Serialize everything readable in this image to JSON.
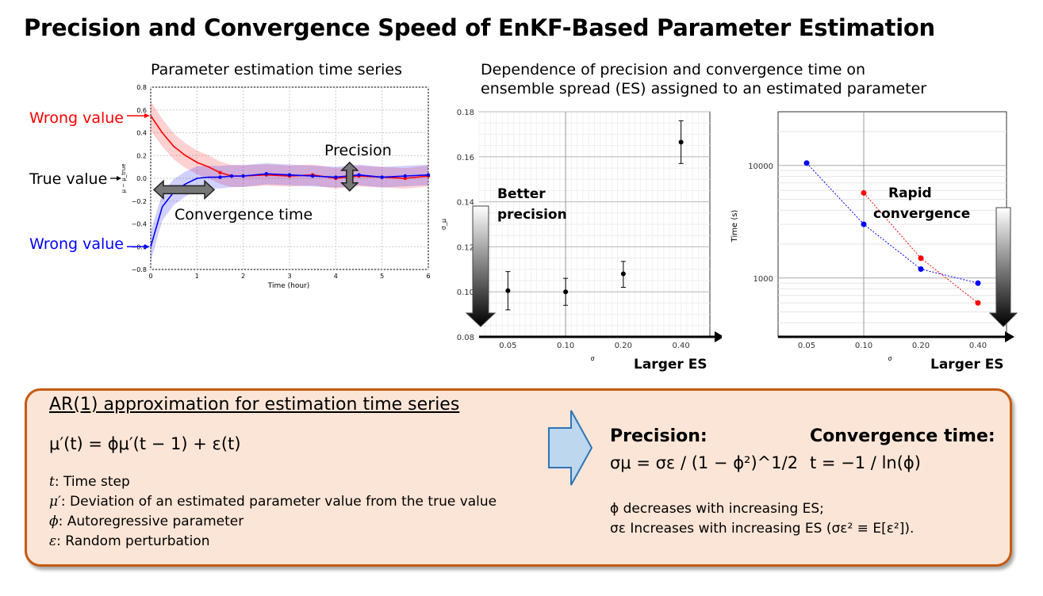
{
  "title": "Precision and Convergence Speed of EnKF-Based Parameter Estimation",
  "panel_left": {
    "subtitle": "Parameter estimation time series",
    "labels": {
      "wrong_value_top": "Wrong value",
      "true_value": "True value",
      "wrong_value_bottom": "Wrong value",
      "precision": "Precision",
      "convergence_time": "Convergence time"
    },
    "colors": {
      "red": "#ff0000",
      "blue": "#0000ff"
    }
  },
  "panel_right_subtitle": [
    "Dependence of precision and convergence time on",
    "ensemble spread (ES) assigned to an estimated parameter"
  ],
  "chart_data": [
    {
      "type": "line",
      "xlabel": "Time (hour)",
      "ylabel": "μ − μ_true",
      "xlim": [
        0,
        6
      ],
      "ylim": [
        -0.8,
        0.8
      ],
      "xticks": [
        "0",
        "1",
        "2",
        "3",
        "4",
        "5",
        "6"
      ],
      "yticks": [
        "−0.8",
        "−0.6",
        "−0.4",
        "−0.2",
        "0.0",
        "0.2",
        "0.4",
        "0.6",
        "0.8"
      ],
      "series": [
        {
          "color": "#ff0000",
          "x": [
            0,
            0.25,
            0.5,
            0.75,
            1,
            1.25,
            1.5,
            1.75,
            2,
            2.5,
            3,
            3.5,
            4,
            4.5,
            5,
            5.5,
            6
          ],
          "y": [
            0.55,
            0.4,
            0.28,
            0.2,
            0.14,
            0.1,
            0.05,
            0.02,
            0.02,
            0.03,
            0.02,
            0.03,
            0.0,
            0.02,
            0.01,
            0.0,
            0.02
          ]
        },
        {
          "color": "#0000ff",
          "x": [
            0,
            0.25,
            0.5,
            0.75,
            1,
            1.25,
            1.5,
            1.75,
            2,
            2.5,
            3,
            3.5,
            4,
            4.5,
            5,
            5.5,
            6
          ],
          "y": [
            -0.6,
            -0.25,
            -0.12,
            -0.05,
            0.0,
            0.01,
            0.01,
            0.02,
            0.02,
            0.04,
            0.03,
            0.02,
            0.01,
            0.03,
            0.01,
            0.02,
            0.03
          ]
        }
      ],
      "annotations": [
        "Wrong value",
        "True value",
        "Wrong value",
        "Precision",
        "Convergence time"
      ]
    },
    {
      "type": "scatter",
      "xlabel": "σ",
      "ylabel": "σ_μ",
      "categories": [
        "0.05",
        "0.10",
        "0.20",
        "0.40"
      ],
      "ylim": [
        0.08,
        0.18
      ],
      "yticks": [
        "0.08",
        "0.10",
        "0.12",
        "0.14",
        "0.16",
        "0.18"
      ],
      "values": [
        0.1005,
        0.1,
        0.108,
        0.1665
      ],
      "error": [
        [
          0.092,
          0.109
        ],
        [
          0.094,
          0.106
        ],
        [
          0.102,
          0.1135
        ],
        [
          0.157,
          0.176
        ]
      ],
      "annotations": [
        "Better precision",
        "Larger ES"
      ]
    },
    {
      "type": "line",
      "xlabel": "σ",
      "ylabel": "Time (s)",
      "categories": [
        "0.05",
        "0.10",
        "0.20",
        "0.40"
      ],
      "yscale": "log",
      "ylim": [
        300,
        30000
      ],
      "yticks": [
        "1000",
        "10000"
      ],
      "series": [
        {
          "color": "#0000ff",
          "x": [
            "0.05",
            "0.10",
            "0.20",
            "0.40"
          ],
          "values": [
            10500,
            3000,
            1200,
            900
          ]
        },
        {
          "color": "#ff0000",
          "x": [
            "0.10",
            "0.20",
            "0.40"
          ],
          "values": [
            5700,
            1500,
            600
          ]
        }
      ],
      "annotations": [
        "Rapid convergence",
        "Larger ES"
      ]
    }
  ],
  "ar_box": {
    "heading": "AR(1) approximation for estimation time series",
    "equation": "μ′(t) = ϕμ′(t − 1) + ε(t)",
    "definitions": [
      {
        "sym": "t",
        "text": ": Time step"
      },
      {
        "sym": "μ′",
        "text": ": Deviation of an estimated parameter value from the true value"
      },
      {
        "sym": "ϕ",
        "text": ": Autoregressive parameter"
      },
      {
        "sym": "ε",
        "text": ": Random perturbation"
      }
    ],
    "precision_heading": "Precision:",
    "precision_formula": "σμ = σε / (1 − ϕ²)^1/2",
    "convergence_heading": "Convergence time:",
    "convergence_formula": "t = −1 / ln(ϕ)",
    "note1": "ϕ decreases with increasing ES;",
    "note2": "σε Increases with increasing ES (σε² ≡ E[ε²])."
  }
}
